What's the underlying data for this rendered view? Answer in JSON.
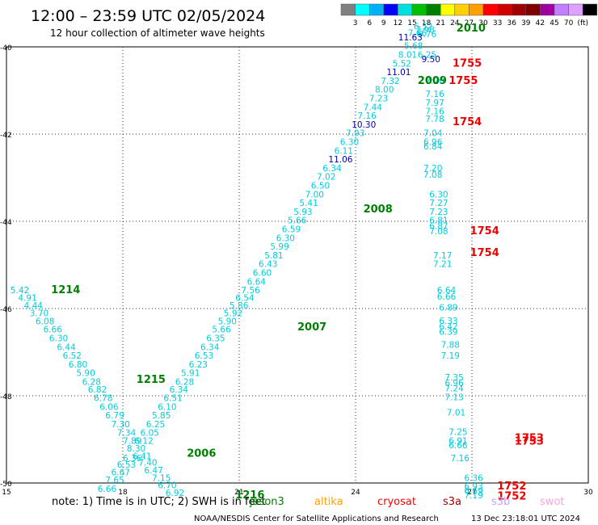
{
  "header": {
    "title": "12:00 – 23:59 UTC 02/05/2024",
    "subtitle": "12 hour collection of altimeter wave heights"
  },
  "colorbar": {
    "unit": "(ft)",
    "colors": [
      "#808080",
      "#00ffff",
      "#00b0ff",
      "#0000ff",
      "#00e0e0",
      "#00c000",
      "#008000",
      "#ffff00",
      "#ffd000",
      "#ffa000",
      "#ff0000",
      "#d00000",
      "#a00000",
      "#800000",
      "#a000a0",
      "#c080ff",
      "#e0a0ff",
      "#000000"
    ],
    "labels": [
      "3",
      "6",
      "9",
      "12",
      "15",
      "18",
      "21",
      "24",
      "27",
      "30",
      "33",
      "36",
      "39",
      "42",
      "45",
      "70"
    ]
  },
  "axes": {
    "x_range": [
      15,
      30
    ],
    "y_range": [
      -50,
      -40
    ],
    "x_ticks": [
      "15",
      "18",
      "21",
      "24",
      "27",
      "30"
    ],
    "y_ticks": [
      "-40",
      "-42",
      "-44",
      "-46",
      "-48",
      "-50"
    ]
  },
  "chart_data": {
    "type": "scatter",
    "series": [
      {
        "name": "jason3",
        "color": "#00ccdd",
        "points": [
          {
            "x": 15.1,
            "y": -45.65,
            "v": "5.42"
          },
          {
            "x": 15.3,
            "y": -45.82,
            "v": "4.91"
          },
          {
            "x": 15.45,
            "y": -46.0,
            "v": "4.44"
          },
          {
            "x": 15.6,
            "y": -46.18,
            "v": "3.70"
          },
          {
            "x": 15.75,
            "y": -46.36,
            "v": "6.08"
          },
          {
            "x": 15.95,
            "y": -46.55,
            "v": "6.66"
          },
          {
            "x": 16.1,
            "y": -46.75,
            "v": "6.30"
          },
          {
            "x": 16.3,
            "y": -46.95,
            "v": "6.44"
          },
          {
            "x": 16.45,
            "y": -47.15,
            "v": "6.52"
          },
          {
            "x": 16.6,
            "y": -47.35,
            "v": "6.80"
          },
          {
            "x": 16.8,
            "y": -47.55,
            "v": "5.90"
          },
          {
            "x": 16.95,
            "y": -47.75,
            "v": "6.28"
          },
          {
            "x": 17.1,
            "y": -47.93,
            "v": "6.82"
          },
          {
            "x": 17.25,
            "y": -48.12,
            "v": "6.78"
          },
          {
            "x": 17.4,
            "y": -48.32,
            "v": "6.06"
          },
          {
            "x": 17.55,
            "y": -48.52,
            "v": "6.79"
          },
          {
            "x": 17.7,
            "y": -48.72,
            "v": "7.30"
          },
          {
            "x": 17.85,
            "y": -48.92,
            "v": "7.34"
          },
          {
            "x": 18.0,
            "y": -49.1,
            "v": "7.89"
          },
          {
            "x": 18.1,
            "y": -49.28,
            "v": "8.30"
          },
          {
            "x": 18.25,
            "y": -49.45,
            "v": "6.41"
          },
          {
            "x": 18.4,
            "y": -49.6,
            "v": "7.40"
          },
          {
            "x": 18.55,
            "y": -49.78,
            "v": "6.47"
          },
          {
            "x": 18.75,
            "y": -49.95,
            "v": "7.15"
          },
          {
            "x": 18.9,
            "y": -50.12,
            "v": "6.70"
          },
          {
            "x": 19.1,
            "y": -50.3,
            "v": "6.92"
          },
          {
            "x": 18.0,
            "y": -49.5,
            "v": "6.36"
          },
          {
            "x": 17.85,
            "y": -49.65,
            "v": "6.53"
          },
          {
            "x": 17.7,
            "y": -49.82,
            "v": "6.67"
          },
          {
            "x": 17.55,
            "y": -50.0,
            "v": "7.65"
          },
          {
            "x": 17.35,
            "y": -50.2,
            "v": "6.66"
          },
          {
            "x": 18.3,
            "y": -49.1,
            "v": "6.12"
          },
          {
            "x": 18.45,
            "y": -48.92,
            "v": "6.05"
          },
          {
            "x": 18.6,
            "y": -48.72,
            "v": "6.25"
          },
          {
            "x": 18.75,
            "y": -48.52,
            "v": "5.85"
          },
          {
            "x": 18.9,
            "y": -48.32,
            "v": "6.10"
          },
          {
            "x": 19.05,
            "y": -48.12,
            "v": "6.51"
          },
          {
            "x": 19.2,
            "y": -47.93,
            "v": "6.34"
          },
          {
            "x": 19.35,
            "y": -47.75,
            "v": "6.28"
          },
          {
            "x": 19.5,
            "y": -47.55,
            "v": "5.91"
          },
          {
            "x": 19.7,
            "y": -47.35,
            "v": "6.23"
          },
          {
            "x": 19.85,
            "y": -47.15,
            "v": "6.53"
          },
          {
            "x": 20.0,
            "y": -46.95,
            "v": "6.34"
          },
          {
            "x": 20.15,
            "y": -46.75,
            "v": "6.35"
          },
          {
            "x": 20.3,
            "y": -46.55,
            "v": "5.66"
          },
          {
            "x": 20.45,
            "y": -46.36,
            "v": "5.90"
          },
          {
            "x": 20.6,
            "y": -46.18,
            "v": "5.92"
          },
          {
            "x": 20.75,
            "y": -46.0,
            "v": "5.86"
          },
          {
            "x": 20.9,
            "y": -45.82,
            "v": "6.54"
          },
          {
            "x": 21.05,
            "y": -45.65,
            "v": "7.56"
          },
          {
            "x": 21.2,
            "y": -45.45,
            "v": "6.64"
          },
          {
            "x": 21.35,
            "y": -45.25,
            "v": "6.60"
          },
          {
            "x": 21.5,
            "y": -45.05,
            "v": "6.43"
          },
          {
            "x": 21.65,
            "y": -44.85,
            "v": "5.81"
          },
          {
            "x": 21.8,
            "y": -44.65,
            "v": "5.99"
          },
          {
            "x": 21.95,
            "y": -44.45,
            "v": "6.30"
          },
          {
            "x": 22.1,
            "y": -44.25,
            "v": "6.59"
          },
          {
            "x": 22.25,
            "y": -44.05,
            "v": "5.66"
          },
          {
            "x": 22.4,
            "y": -43.85,
            "v": "5.93"
          },
          {
            "x": 22.55,
            "y": -43.65,
            "v": "5.41"
          },
          {
            "x": 22.7,
            "y": -43.45,
            "v": "7.00"
          },
          {
            "x": 22.85,
            "y": -43.25,
            "v": "6.50"
          },
          {
            "x": 23.0,
            "y": -43.05,
            "v": "7.02"
          },
          {
            "x": 23.15,
            "y": -42.85,
            "v": "6.34"
          },
          {
            "x": 23.45,
            "y": -42.45,
            "v": "6.11"
          },
          {
            "x": 23.6,
            "y": -42.25,
            "v": "6.30"
          },
          {
            "x": 23.75,
            "y": -42.05,
            "v": "7.93"
          },
          {
            "x": 24.05,
            "y": -41.65,
            "v": "7.16"
          },
          {
            "x": 24.2,
            "y": -41.45,
            "v": "7.44"
          },
          {
            "x": 24.35,
            "y": -41.25,
            "v": "7.23"
          },
          {
            "x": 24.5,
            "y": -41.05,
            "v": "8.00"
          },
          {
            "x": 24.65,
            "y": -40.85,
            "v": "7.32"
          },
          {
            "x": 24.95,
            "y": -40.45,
            "v": "5.52"
          },
          {
            "x": 25.1,
            "y": -40.25,
            "v": "8.01"
          },
          {
            "x": 25.25,
            "y": -40.05,
            "v": "5.68"
          },
          {
            "x": 25.6,
            "y": -40.25,
            "v": "6.25"
          },
          {
            "x": 25.35,
            "y": -39.75,
            "v": "7.66"
          },
          {
            "x": 25.5,
            "y": -39.6,
            "v": "6.52"
          },
          {
            "x": 25.55,
            "y": -39.68,
            "v": "7.98"
          },
          {
            "x": 25.6,
            "y": -39.78,
            "v": "6.76"
          },
          {
            "x": 25.8,
            "y": -40.85,
            "v": "7.20"
          },
          {
            "x": 25.8,
            "y": -41.15,
            "v": "7.16"
          },
          {
            "x": 25.8,
            "y": -41.35,
            "v": "7.97"
          },
          {
            "x": 25.8,
            "y": -41.55,
            "v": "7.16"
          },
          {
            "x": 25.8,
            "y": -41.72,
            "v": "7.78"
          },
          {
            "x": 25.75,
            "y": -42.05,
            "v": "7.04"
          },
          {
            "x": 25.75,
            "y": -42.25,
            "v": "6.96"
          },
          {
            "x": 25.75,
            "y": -42.35,
            "v": "6.84"
          },
          {
            "x": 25.75,
            "y": -42.85,
            "v": "7.20"
          },
          {
            "x": 25.75,
            "y": -43.0,
            "v": "7.08"
          },
          {
            "x": 25.9,
            "y": -43.45,
            "v": "6.30"
          },
          {
            "x": 25.9,
            "y": -43.65,
            "v": "7.27"
          },
          {
            "x": 25.9,
            "y": -43.85,
            "v": "7.23"
          },
          {
            "x": 25.9,
            "y": -44.05,
            "v": "6.81"
          },
          {
            "x": 25.9,
            "y": -44.18,
            "v": "6.87"
          },
          {
            "x": 25.9,
            "y": -44.3,
            "v": "7.08"
          },
          {
            "x": 26.0,
            "y": -44.85,
            "v": "7.17"
          },
          {
            "x": 26.0,
            "y": -45.05,
            "v": "7.21"
          },
          {
            "x": 26.1,
            "y": -45.65,
            "v": "6.64"
          },
          {
            "x": 26.1,
            "y": -45.8,
            "v": "6.66"
          },
          {
            "x": 26.15,
            "y": -46.05,
            "v": "6.89"
          },
          {
            "x": 26.15,
            "y": -46.35,
            "v": "6.33"
          },
          {
            "x": 26.15,
            "y": -46.48,
            "v": "6.42"
          },
          {
            "x": 26.15,
            "y": -46.6,
            "v": "6.39"
          },
          {
            "x": 26.2,
            "y": -46.9,
            "v": "7.88"
          },
          {
            "x": 26.2,
            "y": -47.15,
            "v": "7.19"
          },
          {
            "x": 26.3,
            "y": -47.65,
            "v": "7.35"
          },
          {
            "x": 26.3,
            "y": -47.78,
            "v": "6.96"
          },
          {
            "x": 26.3,
            "y": -47.9,
            "v": "7.24"
          },
          {
            "x": 26.3,
            "y": -48.1,
            "v": "7.13"
          },
          {
            "x": 26.35,
            "y": -48.45,
            "v": "7.01"
          },
          {
            "x": 26.4,
            "y": -48.9,
            "v": "7.25"
          },
          {
            "x": 26.4,
            "y": -49.1,
            "v": "6.91"
          },
          {
            "x": 26.4,
            "y": -49.2,
            "v": "6.66"
          },
          {
            "x": 26.45,
            "y": -49.5,
            "v": "7.16"
          },
          {
            "x": 26.8,
            "y": -49.95,
            "v": "6.36"
          },
          {
            "x": 26.8,
            "y": -50.15,
            "v": "6.93"
          },
          {
            "x": 26.8,
            "y": -50.25,
            "v": "6.69"
          },
          {
            "x": 26.8,
            "y": -50.35,
            "v": "7.19"
          }
        ]
      },
      {
        "name": "blue",
        "color": "#0000aa",
        "points": [
          {
            "x": 23.3,
            "y": -42.65,
            "v": "11.06"
          },
          {
            "x": 23.9,
            "y": -41.85,
            "v": "10.30"
          },
          {
            "x": 24.8,
            "y": -40.65,
            "v": "11.01"
          },
          {
            "x": 25.1,
            "y": -39.85,
            "v": "11.63"
          },
          {
            "x": 25.7,
            "y": -40.35,
            "v": "9.50"
          }
        ]
      },
      {
        "name": "green",
        "color": "#008000",
        "points": [
          {
            "x": 16.15,
            "y": -45.65,
            "v": "1214"
          },
          {
            "x": 18.35,
            "y": -47.7,
            "v": "1215"
          },
          {
            "x": 19.65,
            "y": -49.4,
            "v": "2006"
          },
          {
            "x": 20.9,
            "y": -50.35,
            "v": "1216"
          },
          {
            "x": 22.5,
            "y": -46.5,
            "v": "2007"
          },
          {
            "x": 24.2,
            "y": -43.8,
            "v": "2008"
          },
          {
            "x": 25.6,
            "y": -40.85,
            "v": "2009"
          },
          {
            "x": 26.6,
            "y": -39.65,
            "v": "2010"
          }
        ]
      },
      {
        "name": "red",
        "color": "#ee0000",
        "points": [
          {
            "x": 26.5,
            "y": -40.45,
            "v": "1755"
          },
          {
            "x": 26.4,
            "y": -40.85,
            "v": "1755"
          },
          {
            "x": 26.5,
            "y": -41.8,
            "v": "1754"
          },
          {
            "x": 26.95,
            "y": -44.3,
            "v": "1754"
          },
          {
            "x": 26.95,
            "y": -44.8,
            "v": "1754"
          },
          {
            "x": 28.1,
            "y": -49.05,
            "v": "1753"
          },
          {
            "x": 28.1,
            "y": -49.12,
            "v": "1753"
          },
          {
            "x": 27.65,
            "y": -50.15,
            "v": "1752"
          },
          {
            "x": 27.65,
            "y": -50.38,
            "v": "1752"
          }
        ]
      }
    ]
  },
  "footer": {
    "note": "note:  1) Time is in UTC; 2) SWH is in feet",
    "legend": [
      {
        "label": "jason3",
        "color": "#008000"
      },
      {
        "label": "altika",
        "color": "#ffa000"
      },
      {
        "label": "cryosat",
        "color": "#ff0000"
      },
      {
        "label": "s3a",
        "color": "#a00000"
      },
      {
        "label": "s3b",
        "color": "#c8a0ff"
      },
      {
        "label": "swot",
        "color": "#ffa0e0"
      }
    ],
    "credit": "NOAA/NESDIS Center for Satellite Applications and Research",
    "timestamp": "13 Dec 23:18:01 UTC 2024"
  }
}
